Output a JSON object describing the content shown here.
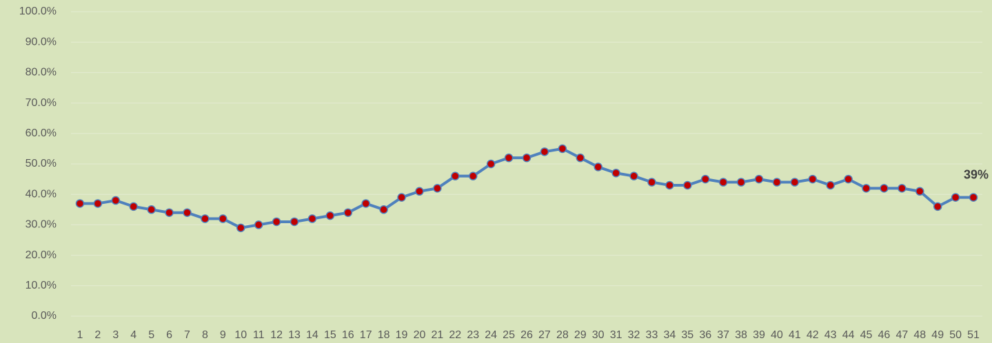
{
  "chart_data": {
    "type": "line",
    "categories": [
      "1",
      "2",
      "3",
      "4",
      "5",
      "6",
      "7",
      "8",
      "9",
      "10",
      "11",
      "12",
      "13",
      "14",
      "15",
      "16",
      "17",
      "18",
      "19",
      "20",
      "21",
      "22",
      "23",
      "24",
      "25",
      "26",
      "27",
      "28",
      "29",
      "30",
      "31",
      "32",
      "33",
      "34",
      "35",
      "36",
      "37",
      "38",
      "39",
      "40",
      "41",
      "42",
      "43",
      "44",
      "45",
      "46",
      "47",
      "48",
      "49",
      "50",
      "51"
    ],
    "series": [
      {
        "color": "#4f81bd",
        "marker_color": "#c00000",
        "values": [
          37,
          37,
          38,
          36,
          35,
          34,
          34,
          32,
          32,
          29,
          30,
          31,
          31,
          32,
          33,
          34,
          37,
          35,
          39,
          41,
          42,
          46,
          46,
          50,
          52,
          52,
          54,
          55,
          52,
          49,
          47,
          46,
          44,
          43,
          43,
          45,
          44,
          44,
          45,
          44,
          44,
          45,
          43,
          45,
          42,
          42,
          42,
          41,
          36,
          39,
          39
        ],
        "value_labels": [
          null,
          null,
          null,
          null,
          null,
          null,
          null,
          null,
          null,
          null,
          null,
          null,
          null,
          null,
          null,
          null,
          null,
          null,
          null,
          null,
          null,
          null,
          null,
          null,
          null,
          null,
          null,
          null,
          null,
          null,
          null,
          null,
          null,
          null,
          null,
          null,
          null,
          null,
          null,
          null,
          null,
          null,
          null,
          null,
          null,
          null,
          null,
          null,
          null,
          null,
          "39%"
        ]
      }
    ],
    "ylim": [
      0,
      100
    ],
    "yticks": [
      {
        "value": 0,
        "label": "0.0%"
      },
      {
        "value": 10,
        "label": "10.0%"
      },
      {
        "value": 20,
        "label": "20.0%"
      },
      {
        "value": 30,
        "label": "30.0%"
      },
      {
        "value": 40,
        "label": "40.0%"
      },
      {
        "value": 50,
        "label": "50.0%"
      },
      {
        "value": 60,
        "label": "60.0%"
      },
      {
        "value": 70,
        "label": "70.0%"
      },
      {
        "value": 80,
        "label": "80.0%"
      },
      {
        "value": 90,
        "label": "90.0%"
      },
      {
        "value": 100,
        "label": "100.0%"
      }
    ],
    "grid": true
  }
}
